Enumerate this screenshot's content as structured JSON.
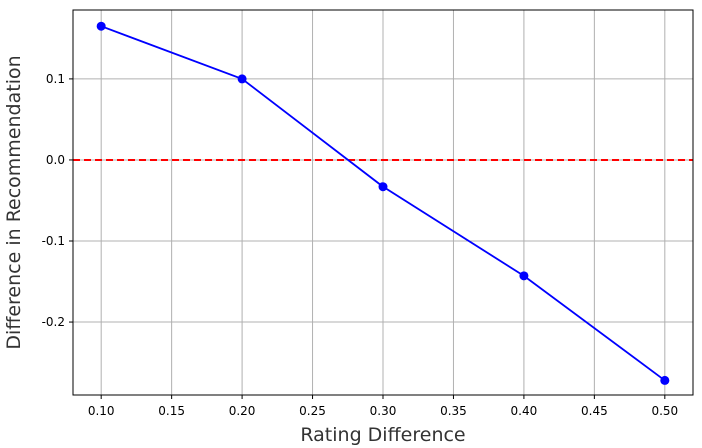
{
  "chart_data": {
    "type": "line",
    "title": "",
    "xlabel": "Rating Difference",
    "ylabel": "Difference in Recommendation",
    "x": [
      0.1,
      0.2,
      0.3,
      0.4,
      0.5
    ],
    "series": [
      {
        "values": [
          0.165,
          0.1,
          -0.033,
          -0.143,
          -0.272
        ],
        "color": "#0000ff",
        "marker": "circle"
      }
    ],
    "reference_line": {
      "y": 0.0,
      "color": "#ff0000",
      "style": "dashed"
    },
    "xlim": [
      0.08,
      0.52
    ],
    "ylim": [
      -0.29,
      0.185
    ],
    "xticks": [
      0.1,
      0.15,
      0.2,
      0.25,
      0.3,
      0.35,
      0.4,
      0.45,
      0.5
    ],
    "xtick_labels": [
      "0.10",
      "0.15",
      "0.20",
      "0.25",
      "0.30",
      "0.35",
      "0.40",
      "0.45",
      "0.50"
    ],
    "yticks": [
      -0.2,
      -0.1,
      0.0,
      0.1
    ],
    "ytick_labels": [
      "-0.2",
      "-0.1",
      "0.0",
      "0.1"
    ],
    "grid": true,
    "legend": "none"
  }
}
